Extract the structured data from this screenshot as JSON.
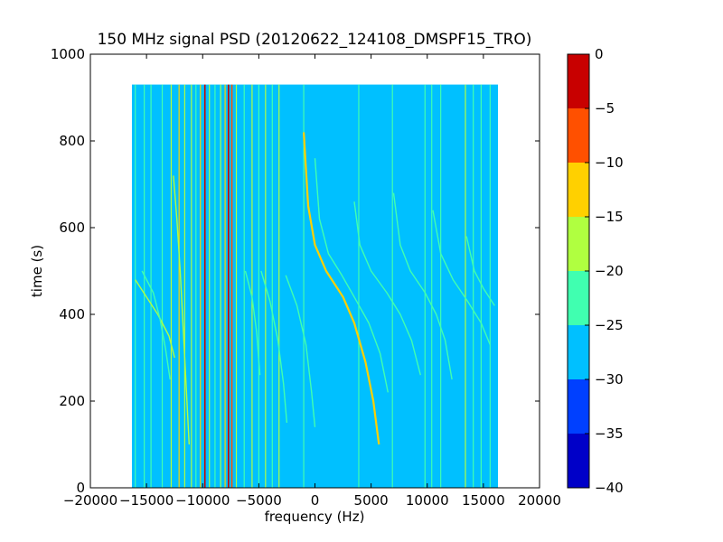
{
  "chart_data": {
    "type": "heatmap",
    "title": "150 MHz signal PSD (20120622_124108_DMSPF15_TRO)",
    "xlabel": "frequency (Hz)",
    "ylabel": "time (s)",
    "xlim": [
      -20000,
      20000
    ],
    "ylim": [
      0,
      1000
    ],
    "x_ticks": [
      -20000,
      -15000,
      -10000,
      -5000,
      0,
      5000,
      10000,
      15000,
      20000
    ],
    "y_ticks": [
      0,
      200,
      400,
      600,
      800,
      1000
    ],
    "data_extent": {
      "x": [
        -16300,
        16300
      ],
      "y": [
        0,
        930
      ]
    },
    "background_level": -27.5,
    "colorbar": {
      "levels": [
        -40,
        -35,
        -30,
        -25,
        -20,
        -15,
        -10,
        -5,
        0
      ],
      "colors": [
        "#0000c8",
        "#0040ff",
        "#00c0ff",
        "#40ffb0",
        "#b0ff40",
        "#ffd000",
        "#ff5000",
        "#c80000"
      ],
      "ticks": [
        0,
        -5,
        -10,
        -15,
        -20,
        -25,
        -30,
        -35,
        -40
      ]
    },
    "vertical_lines": [
      {
        "x": -16000,
        "level": -22.5
      },
      {
        "x": -15200,
        "level": -22.5
      },
      {
        "x": -14600,
        "level": -22.5
      },
      {
        "x": -13600,
        "level": -22.5
      },
      {
        "x": -12800,
        "level": -17.5
      },
      {
        "x": -12100,
        "level": -12.5
      },
      {
        "x": -11600,
        "level": -17.5
      },
      {
        "x": -11000,
        "level": -17.5
      },
      {
        "x": -10600,
        "level": -22.5
      },
      {
        "x": -10200,
        "level": -12.5
      },
      {
        "x": -9800,
        "level": -2.5
      },
      {
        "x": -9400,
        "level": -17.5
      },
      {
        "x": -8900,
        "level": -22.5
      },
      {
        "x": -8400,
        "level": -17.5
      },
      {
        "x": -8000,
        "level": -12.5
      },
      {
        "x": -7700,
        "level": -2.5
      },
      {
        "x": -7400,
        "level": -7.5
      },
      {
        "x": -7000,
        "level": -17.5
      },
      {
        "x": -6300,
        "level": -22.5
      },
      {
        "x": -5600,
        "level": -17.5
      },
      {
        "x": -5000,
        "level": -22.5
      },
      {
        "x": -4400,
        "level": -17.5
      },
      {
        "x": -3800,
        "level": -22.5
      },
      {
        "x": -3200,
        "level": -17.5
      },
      {
        "x": -1000,
        "level": -22.5
      },
      {
        "x": 3900,
        "level": -22.5
      },
      {
        "x": 6900,
        "level": -22.5
      },
      {
        "x": 9800,
        "level": -22.5
      },
      {
        "x": 10400,
        "level": -22.5
      },
      {
        "x": 11200,
        "level": -22.5
      },
      {
        "x": 13400,
        "level": -17.5
      },
      {
        "x": 14100,
        "level": -22.5
      },
      {
        "x": 14800,
        "level": -22.5
      },
      {
        "x": 15600,
        "level": -22.5
      }
    ],
    "traces": [
      {
        "level": -12.5,
        "points": [
          [
            -1000,
            820
          ],
          [
            -600,
            650
          ],
          [
            0,
            560
          ],
          [
            1000,
            500
          ],
          [
            2500,
            440
          ],
          [
            3500,
            380
          ],
          [
            4500,
            290
          ],
          [
            5200,
            200
          ],
          [
            5700,
            100
          ]
        ]
      },
      {
        "level": -17.5,
        "points": [
          [
            -16000,
            480
          ],
          [
            -15000,
            440
          ],
          [
            -14000,
            400
          ],
          [
            -13000,
            350
          ],
          [
            -12500,
            300
          ]
        ]
      },
      {
        "level": -22.5,
        "points": [
          [
            -15400,
            500
          ],
          [
            -14400,
            450
          ],
          [
            -13800,
            390
          ],
          [
            -13300,
            320
          ],
          [
            -12900,
            250
          ]
        ]
      },
      {
        "level": -17.5,
        "points": [
          [
            -12600,
            720
          ],
          [
            -12300,
            620
          ],
          [
            -12000,
            500
          ],
          [
            -11600,
            300
          ],
          [
            -11200,
            100
          ]
        ]
      },
      {
        "level": -22.5,
        "points": [
          [
            -4800,
            500
          ],
          [
            -4000,
            430
          ],
          [
            -3300,
            340
          ],
          [
            -2800,
            240
          ],
          [
            -2500,
            150
          ]
        ]
      },
      {
        "level": -22.5,
        "points": [
          [
            -6200,
            500
          ],
          [
            -5600,
            440
          ],
          [
            -5200,
            360
          ],
          [
            -4900,
            260
          ]
        ]
      },
      {
        "level": -22.5,
        "points": [
          [
            -2600,
            490
          ],
          [
            -1600,
            420
          ],
          [
            -800,
            330
          ],
          [
            -300,
            220
          ],
          [
            0,
            140
          ]
        ]
      },
      {
        "level": -22.5,
        "points": [
          [
            0,
            760
          ],
          [
            400,
            620
          ],
          [
            1200,
            540
          ],
          [
            2400,
            490
          ],
          [
            3500,
            440
          ],
          [
            4800,
            380
          ],
          [
            5800,
            310
          ],
          [
            6500,
            220
          ]
        ]
      },
      {
        "level": -22.5,
        "points": [
          [
            3500,
            660
          ],
          [
            4000,
            560
          ],
          [
            5000,
            500
          ],
          [
            6400,
            450
          ],
          [
            7600,
            400
          ],
          [
            8600,
            340
          ],
          [
            9400,
            260
          ]
        ]
      },
      {
        "level": -22.5,
        "points": [
          [
            7000,
            680
          ],
          [
            7600,
            560
          ],
          [
            8500,
            500
          ],
          [
            9800,
            450
          ],
          [
            10800,
            400
          ],
          [
            11600,
            340
          ],
          [
            12200,
            250
          ]
        ]
      },
      {
        "level": -22.5,
        "points": [
          [
            10500,
            640
          ],
          [
            11200,
            540
          ],
          [
            12300,
            480
          ],
          [
            13600,
            430
          ],
          [
            14800,
            380
          ],
          [
            15600,
            330
          ]
        ]
      },
      {
        "level": -22.5,
        "points": [
          [
            13500,
            580
          ],
          [
            14200,
            500
          ],
          [
            15000,
            460
          ],
          [
            16000,
            420
          ]
        ]
      }
    ]
  }
}
